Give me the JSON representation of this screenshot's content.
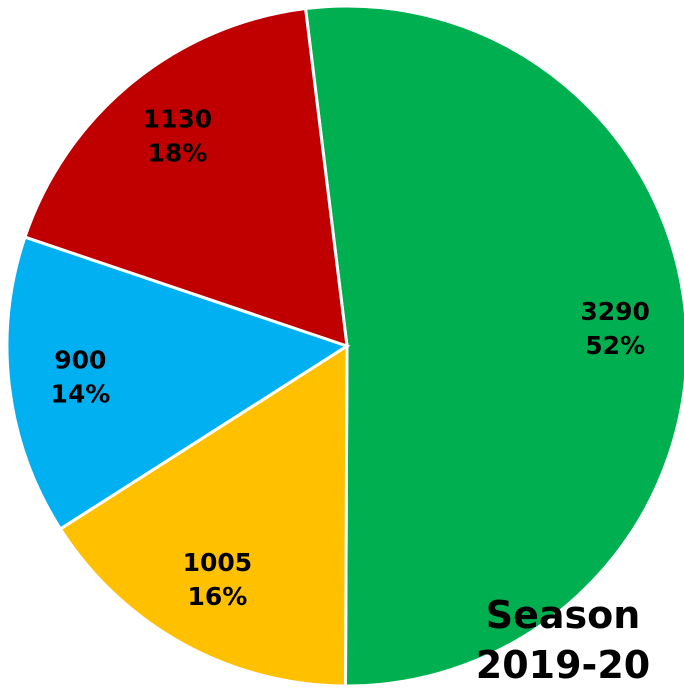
{
  "chart_data": {
    "type": "pie",
    "title": "Season 2019-20",
    "categories": [
      null,
      null,
      null,
      null
    ],
    "values": [
      3290,
      1005,
      900,
      1130
    ],
    "percent_labels": [
      "52%",
      "16%",
      "14%",
      "18%"
    ],
    "colors": [
      "#00b050",
      "#ffc000",
      "#00b0f0",
      "#c00000"
    ]
  }
}
